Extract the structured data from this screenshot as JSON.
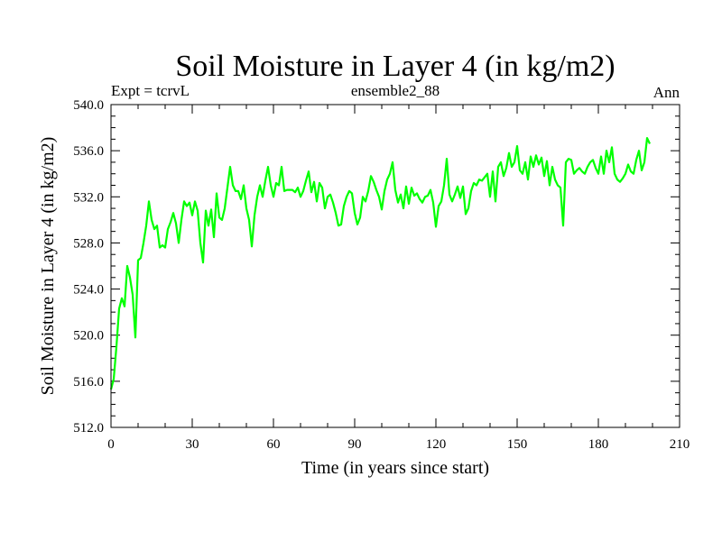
{
  "chart_data": {
    "type": "line",
    "title": "Soil Moisture in Layer 4 (in kg/m2)",
    "left_subtitle": "Expt = tcrvL",
    "center_subtitle": "ensemble2_88",
    "right_subtitle": "Ann",
    "xlabel": "Time (in years since start)",
    "ylabel": "Soil Moisture in Layer 4 (in kg/m2)",
    "xlim": [
      0,
      210
    ],
    "ylim": [
      512.0,
      540.0
    ],
    "x_ticks": [
      0,
      30,
      60,
      90,
      120,
      150,
      180,
      210
    ],
    "x_tick_labels": [
      "0",
      "30",
      "60",
      "90",
      "120",
      "150",
      "180",
      "210"
    ],
    "y_ticks": [
      512.0,
      516.0,
      520.0,
      524.0,
      528.0,
      532.0,
      536.0,
      540.0
    ],
    "y_tick_labels": [
      "512.0",
      "516.0",
      "520.0",
      "524.0",
      "528.0",
      "532.0",
      "536.0",
      "540.0"
    ],
    "grid": false,
    "line_color": "#00ff00",
    "series": [
      {
        "x": [
          0,
          1,
          2,
          3,
          4,
          5,
          6,
          7,
          8,
          9,
          10,
          11,
          12,
          13,
          14,
          15,
          16,
          17,
          18,
          19,
          20,
          21,
          22,
          23,
          24,
          25,
          26,
          27,
          28,
          29,
          30,
          31,
          32,
          33,
          34,
          35,
          36,
          37,
          38,
          39,
          40,
          41,
          42,
          43,
          44,
          45,
          46,
          47,
          48,
          49,
          50,
          51,
          52,
          53,
          54,
          55,
          56,
          57,
          58,
          59,
          60,
          61,
          62,
          63,
          64,
          65,
          66,
          67,
          68,
          69,
          70,
          71,
          72,
          73,
          74,
          75,
          76,
          77,
          78,
          79,
          80,
          81,
          82,
          83,
          84,
          85,
          86,
          87,
          88,
          89,
          90,
          91,
          92,
          93,
          94,
          95,
          96,
          97,
          98,
          99,
          100,
          101,
          102,
          103,
          104,
          105,
          106,
          107,
          108,
          109,
          110,
          111,
          112,
          113,
          114,
          115,
          116,
          117,
          118,
          119,
          120,
          121,
          122,
          123,
          124,
          125,
          126,
          127,
          128,
          129,
          130,
          131,
          132,
          133,
          134,
          135,
          136,
          137,
          138,
          139,
          140,
          141,
          142,
          143,
          144,
          145,
          146,
          147,
          148,
          149,
          150,
          151,
          152,
          153,
          154,
          155,
          156,
          157,
          158,
          159,
          160,
          161,
          162,
          163,
          164,
          165,
          166,
          167,
          168,
          169,
          170,
          171,
          172,
          173,
          174,
          175,
          176,
          177,
          178,
          179,
          180,
          181,
          182,
          183,
          184,
          185,
          186,
          187,
          188,
          189,
          190,
          191,
          192,
          193,
          194,
          195,
          196,
          197,
          198,
          199
        ],
        "values": [
          515.3,
          516.2,
          519.0,
          522.3,
          523.2,
          522.5,
          526.0,
          525.0,
          523.5,
          519.8,
          526.5,
          526.7,
          528.0,
          529.5,
          531.6,
          530.0,
          529.2,
          529.5,
          527.6,
          527.8,
          527.6,
          529.2,
          529.8,
          530.6,
          529.7,
          528.0,
          530.0,
          531.6,
          531.2,
          531.5,
          530.4,
          531.6,
          530.8,
          528.0,
          526.3,
          530.8,
          529.5,
          530.9,
          528.5,
          532.3,
          530.2,
          530.0,
          531.0,
          532.8,
          534.6,
          533.0,
          532.5,
          532.5,
          531.8,
          533.0,
          531.0,
          530.0,
          527.7,
          530.4,
          532.0,
          533.0,
          532.0,
          533.4,
          534.6,
          533.0,
          532.0,
          533.2,
          533.0,
          534.6,
          532.5,
          532.6,
          532.6,
          532.6,
          532.4,
          532.8,
          532.0,
          532.5,
          533.4,
          534.2,
          532.4,
          533.3,
          531.6,
          533.2,
          532.8,
          531.0,
          532.0,
          532.2,
          531.5,
          530.6,
          529.5,
          529.6,
          531.2,
          532.0,
          532.5,
          532.3,
          530.6,
          529.6,
          530.2,
          532.0,
          531.6,
          532.5,
          533.8,
          533.3,
          532.6,
          532.0,
          530.9,
          532.5,
          533.5,
          534.0,
          535.0,
          532.6,
          531.5,
          532.2,
          531.0,
          532.9,
          531.4,
          532.8,
          532.1,
          532.3,
          531.8,
          531.5,
          532.0,
          532.1,
          532.6,
          531.5,
          529.4,
          531.2,
          531.6,
          533.0,
          535.3,
          532.2,
          531.6,
          532.2,
          532.9,
          531.9,
          532.9,
          530.5,
          531.0,
          532.5,
          533.2,
          533.0,
          533.5,
          533.4,
          533.7,
          534.0,
          532.0,
          534.2,
          531.6,
          534.6,
          535.0,
          533.8,
          534.5,
          535.8,
          534.6,
          535.0,
          536.4,
          534.3,
          534.0,
          535.0,
          533.5,
          535.5,
          534.6,
          535.6,
          534.8,
          535.4,
          533.8,
          535.1,
          533.0,
          534.6,
          533.5,
          533.0,
          532.8,
          529.5,
          535.0,
          535.3,
          535.2,
          534.0,
          534.3,
          534.5,
          534.2,
          534.0,
          534.6,
          535.0,
          535.2,
          534.5,
          534.0,
          535.5,
          534.0,
          536.0,
          535.0,
          536.3,
          534.0,
          533.5,
          533.3,
          533.6,
          534.0,
          534.8,
          534.2,
          534.0,
          535.2,
          536.0,
          534.3,
          535.0,
          537.1,
          536.6
        ]
      }
    ]
  }
}
